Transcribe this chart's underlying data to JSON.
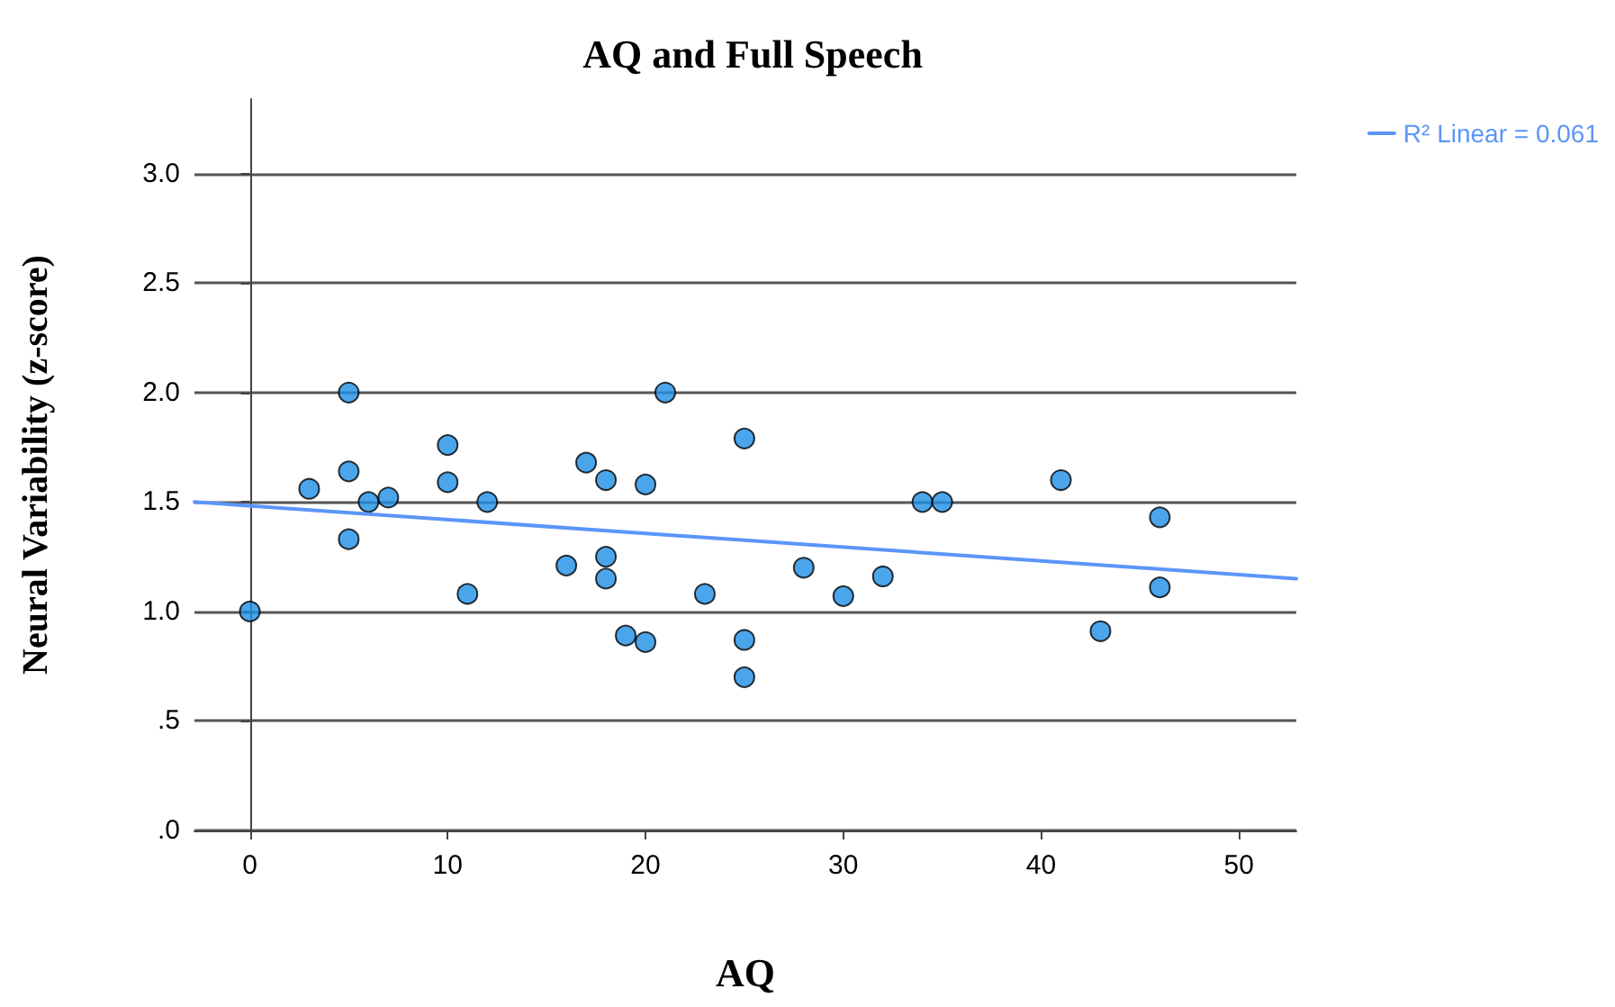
{
  "chart_data": {
    "type": "scatter",
    "title": "AQ and Full Speech",
    "xlabel": "AQ",
    "ylabel": "Neural Variability (z-score)",
    "xlim": [
      -2.8,
      52.9
    ],
    "xticks": [
      0,
      10,
      20,
      30,
      40,
      50
    ],
    "ylim": [
      0,
      3.34
    ],
    "yticks": [
      {
        "value": 0,
        "label": ".0"
      },
      {
        "value": 0.5,
        "label": ".5"
      },
      {
        "value": 1,
        "label": "1.0"
      },
      1.5,
      {
        "value": 2,
        "label": "2.0"
      },
      2.5,
      {
        "value": 3,
        "label": "3.0"
      }
    ],
    "grid": "y",
    "legend": "top right",
    "marker": "circle",
    "series": [
      {
        "color": "#1e8fe6",
        "x": [
          0,
          3,
          5,
          5,
          5,
          6,
          7,
          10,
          10,
          11,
          12,
          16,
          17,
          18,
          18,
          18,
          19,
          20,
          20,
          21,
          23,
          25,
          25,
          25,
          28,
          30,
          32,
          34,
          35,
          41,
          43,
          46,
          46
        ],
        "values": [
          1.0,
          1.56,
          2.0,
          1.64,
          1.33,
          1.5,
          1.52,
          1.76,
          1.59,
          1.08,
          1.5,
          1.21,
          1.68,
          1.6,
          1.25,
          1.15,
          0.89,
          1.58,
          0.86,
          2.0,
          1.08,
          1.79,
          0.87,
          0.7,
          1.2,
          1.07,
          1.16,
          1.5,
          1.5,
          1.6,
          0.91,
          1.43,
          1.11
        ]
      },
      {
        "type": "line",
        "name": "R² Linear = 0.061",
        "color": "#5b95f9",
        "marker": "none",
        "x": [
          -2.8,
          52.9
        ],
        "values": [
          1.5,
          1.15
        ]
      }
    ]
  }
}
